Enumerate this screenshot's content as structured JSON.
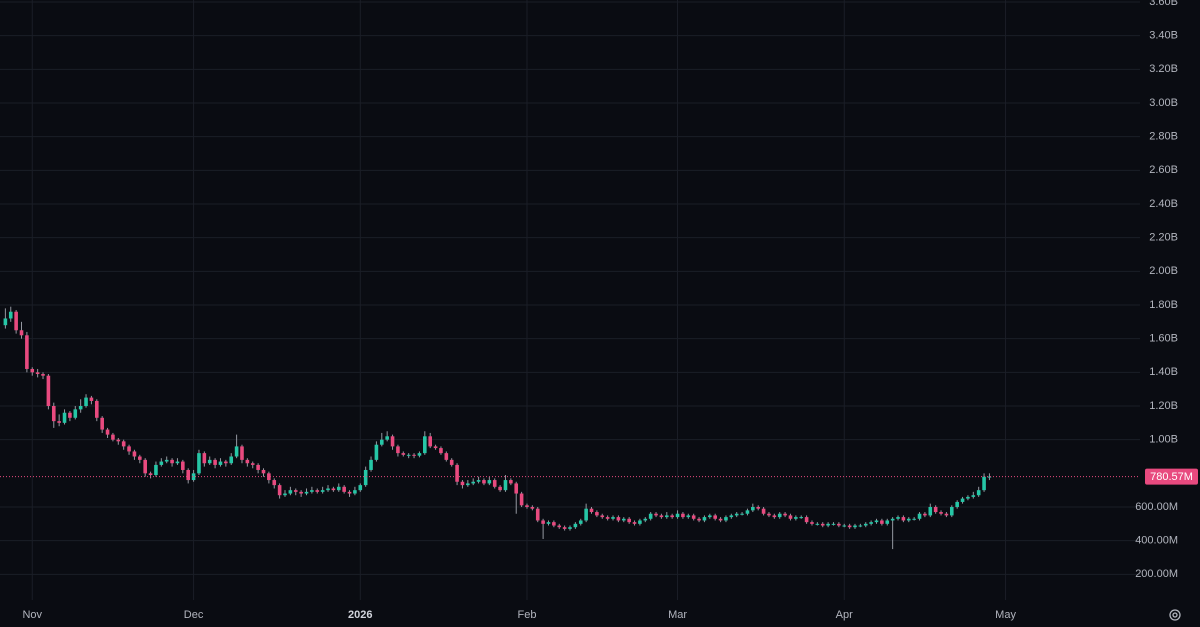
{
  "chart_data": {
    "type": "candlestick",
    "up_color": "#26c6a6",
    "down_color": "#e84a7f",
    "grid": true,
    "xlim": [
      -1,
      211
    ],
    "xticks": [
      {
        "value": 5,
        "label": "Nov"
      },
      {
        "value": 35,
        "label": "Dec"
      },
      {
        "value": 66,
        "label": "2026"
      },
      {
        "value": 97,
        "label": "Feb"
      },
      {
        "value": 125,
        "label": "Mar"
      },
      {
        "value": 156,
        "label": "Apr"
      },
      {
        "value": 186,
        "label": "May"
      }
    ],
    "ylim": [
      0,
      3600
    ],
    "yticks": [
      {
        "value": 200,
        "label": "200.00M"
      },
      {
        "value": 400,
        "label": "400.00M"
      },
      {
        "value": 600,
        "label": "600.00M"
      },
      {
        "value": 1000,
        "label": "1.00B"
      },
      {
        "value": 1200,
        "label": "1.20B"
      },
      {
        "value": 1400,
        "label": "1.40B"
      },
      {
        "value": 1600,
        "label": "1.60B"
      },
      {
        "value": 1800,
        "label": "1.80B"
      },
      {
        "value": 2000,
        "label": "2.00B"
      },
      {
        "value": 2200,
        "label": "2.20B"
      },
      {
        "value": 2400,
        "label": "2.40B"
      },
      {
        "value": 2600,
        "label": "2.60B"
      },
      {
        "value": 2800,
        "label": "2.80B"
      },
      {
        "value": 3000,
        "label": "3.00B"
      },
      {
        "value": 3200,
        "label": "3.20B"
      },
      {
        "value": 3400,
        "label": "3.40B"
      },
      {
        "value": 3600,
        "label": "3.60B"
      }
    ],
    "price_line": {
      "value": 780.57,
      "label": "780.57M"
    },
    "ohlc": [
      [
        1680,
        1780,
        1660,
        1720
      ],
      [
        1720,
        1790,
        1700,
        1760
      ],
      [
        1760,
        1770,
        1630,
        1650
      ],
      [
        1650,
        1700,
        1600,
        1620
      ],
      [
        1620,
        1640,
        1400,
        1420
      ],
      [
        1420,
        1430,
        1380,
        1400
      ],
      [
        1400,
        1420,
        1370,
        1390
      ],
      [
        1390,
        1400,
        1360,
        1380
      ],
      [
        1380,
        1390,
        1180,
        1200
      ],
      [
        1200,
        1220,
        1070,
        1110
      ],
      [
        1110,
        1150,
        1080,
        1100
      ],
      [
        1100,
        1180,
        1090,
        1160
      ],
      [
        1160,
        1170,
        1110,
        1130
      ],
      [
        1130,
        1200,
        1120,
        1180
      ],
      [
        1180,
        1240,
        1160,
        1200
      ],
      [
        1200,
        1270,
        1190,
        1250
      ],
      [
        1250,
        1260,
        1210,
        1230
      ],
      [
        1230,
        1240,
        1110,
        1130
      ],
      [
        1130,
        1140,
        1040,
        1060
      ],
      [
        1060,
        1070,
        1010,
        1030
      ],
      [
        1030,
        1040,
        990,
        1000
      ],
      [
        1000,
        1010,
        970,
        990
      ],
      [
        990,
        1000,
        940,
        960
      ],
      [
        960,
        970,
        910,
        930
      ],
      [
        930,
        940,
        880,
        900
      ],
      [
        900,
        910,
        860,
        880
      ],
      [
        880,
        890,
        780,
        800
      ],
      [
        800,
        810,
        770,
        790
      ],
      [
        790,
        870,
        780,
        850
      ],
      [
        850,
        890,
        840,
        870
      ],
      [
        870,
        900,
        860,
        880
      ],
      [
        880,
        890,
        840,
        860
      ],
      [
        860,
        890,
        850,
        870
      ],
      [
        870,
        880,
        800,
        820
      ],
      [
        820,
        830,
        740,
        760
      ],
      [
        760,
        820,
        750,
        800
      ],
      [
        800,
        940,
        790,
        920
      ],
      [
        920,
        930,
        840,
        860
      ],
      [
        860,
        900,
        850,
        880
      ],
      [
        880,
        890,
        830,
        850
      ],
      [
        850,
        890,
        840,
        870
      ],
      [
        870,
        880,
        840,
        860
      ],
      [
        860,
        920,
        850,
        900
      ],
      [
        900,
        1030,
        890,
        960
      ],
      [
        960,
        970,
        860,
        880
      ],
      [
        880,
        890,
        840,
        860
      ],
      [
        860,
        870,
        830,
        850
      ],
      [
        850,
        860,
        800,
        820
      ],
      [
        820,
        830,
        780,
        800
      ],
      [
        800,
        810,
        740,
        760
      ],
      [
        760,
        770,
        710,
        730
      ],
      [
        730,
        740,
        650,
        670
      ],
      [
        670,
        700,
        660,
        680
      ],
      [
        680,
        720,
        670,
        700
      ],
      [
        700,
        710,
        670,
        690
      ],
      [
        690,
        700,
        660,
        680
      ],
      [
        680,
        710,
        670,
        690
      ],
      [
        690,
        720,
        680,
        700
      ],
      [
        700,
        710,
        680,
        690
      ],
      [
        690,
        720,
        680,
        700
      ],
      [
        700,
        730,
        690,
        710
      ],
      [
        710,
        720,
        690,
        700
      ],
      [
        700,
        740,
        690,
        720
      ],
      [
        720,
        730,
        680,
        690
      ],
      [
        690,
        700,
        660,
        680
      ],
      [
        680,
        720,
        670,
        700
      ],
      [
        700,
        740,
        690,
        730
      ],
      [
        730,
        840,
        720,
        820
      ],
      [
        820,
        900,
        810,
        880
      ],
      [
        880,
        990,
        870,
        970
      ],
      [
        970,
        1040,
        960,
        1000
      ],
      [
        1000,
        1050,
        990,
        1020
      ],
      [
        1020,
        1030,
        940,
        960
      ],
      [
        960,
        970,
        900,
        920
      ],
      [
        920,
        930,
        900,
        910
      ],
      [
        910,
        920,
        890,
        910
      ],
      [
        910,
        920,
        890,
        905
      ],
      [
        905,
        930,
        895,
        920
      ],
      [
        920,
        1050,
        910,
        1020
      ],
      [
        1020,
        1040,
        950,
        960
      ],
      [
        960,
        970,
        940,
        950
      ],
      [
        950,
        960,
        910,
        920
      ],
      [
        920,
        930,
        870,
        880
      ],
      [
        880,
        890,
        840,
        850
      ],
      [
        850,
        860,
        730,
        750
      ],
      [
        750,
        760,
        710,
        730
      ],
      [
        730,
        760,
        720,
        740
      ],
      [
        740,
        770,
        730,
        750
      ],
      [
        750,
        780,
        740,
        760
      ],
      [
        760,
        770,
        730,
        740
      ],
      [
        740,
        780,
        730,
        760
      ],
      [
        760,
        770,
        710,
        720
      ],
      [
        720,
        730,
        690,
        700
      ],
      [
        700,
        790,
        690,
        760
      ],
      [
        760,
        770,
        730,
        740
      ],
      [
        740,
        750,
        560,
        680
      ],
      [
        680,
        690,
        600,
        610
      ],
      [
        610,
        620,
        590,
        600
      ],
      [
        600,
        610,
        580,
        590
      ],
      [
        590,
        600,
        510,
        520
      ],
      [
        520,
        530,
        410,
        500
      ],
      [
        500,
        520,
        490,
        510
      ],
      [
        510,
        520,
        480,
        490
      ],
      [
        490,
        500,
        470,
        480
      ],
      [
        480,
        490,
        460,
        470
      ],
      [
        470,
        490,
        460,
        480
      ],
      [
        480,
        510,
        470,
        500
      ],
      [
        500,
        530,
        490,
        520
      ],
      [
        520,
        620,
        510,
        590
      ],
      [
        590,
        600,
        560,
        570
      ],
      [
        570,
        580,
        540,
        550
      ],
      [
        550,
        560,
        530,
        540
      ],
      [
        540,
        550,
        520,
        530
      ],
      [
        530,
        550,
        520,
        540
      ],
      [
        540,
        550,
        510,
        520
      ],
      [
        520,
        540,
        510,
        530
      ],
      [
        530,
        540,
        500,
        510
      ],
      [
        510,
        520,
        490,
        500
      ],
      [
        500,
        530,
        490,
        520
      ],
      [
        520,
        540,
        510,
        530
      ],
      [
        530,
        570,
        520,
        560
      ],
      [
        560,
        570,
        540,
        550
      ],
      [
        550,
        560,
        530,
        540
      ],
      [
        540,
        570,
        530,
        550
      ],
      [
        550,
        560,
        530,
        540
      ],
      [
        540,
        580,
        530,
        560
      ],
      [
        560,
        570,
        530,
        540
      ],
      [
        540,
        560,
        530,
        550
      ],
      [
        550,
        560,
        520,
        530
      ],
      [
        530,
        540,
        510,
        520
      ],
      [
        520,
        550,
        510,
        540
      ],
      [
        540,
        560,
        530,
        550
      ],
      [
        550,
        560,
        520,
        530
      ],
      [
        530,
        540,
        510,
        520
      ],
      [
        520,
        550,
        510,
        540
      ],
      [
        540,
        560,
        530,
        550
      ],
      [
        550,
        570,
        540,
        560
      ],
      [
        560,
        570,
        550,
        560
      ],
      [
        560,
        590,
        550,
        580
      ],
      [
        580,
        620,
        570,
        600
      ],
      [
        600,
        610,
        580,
        590
      ],
      [
        590,
        600,
        550,
        560
      ],
      [
        560,
        570,
        540,
        550
      ],
      [
        550,
        560,
        530,
        540
      ],
      [
        540,
        570,
        530,
        560
      ],
      [
        560,
        570,
        540,
        550
      ],
      [
        550,
        560,
        520,
        530
      ],
      [
        530,
        550,
        520,
        540
      ],
      [
        540,
        550,
        530,
        540
      ],
      [
        540,
        550,
        500,
        510
      ],
      [
        510,
        520,
        490,
        500
      ],
      [
        500,
        510,
        490,
        500
      ],
      [
        500,
        510,
        480,
        490
      ],
      [
        490,
        510,
        480,
        500
      ],
      [
        500,
        510,
        490,
        500
      ],
      [
        500,
        510,
        480,
        490
      ],
      [
        490,
        500,
        480,
        490
      ],
      [
        490,
        500,
        470,
        480
      ],
      [
        480,
        500,
        470,
        490
      ],
      [
        490,
        500,
        480,
        490
      ],
      [
        490,
        510,
        480,
        500
      ],
      [
        500,
        520,
        490,
        510
      ],
      [
        510,
        530,
        500,
        520
      ],
      [
        520,
        530,
        490,
        500
      ],
      [
        500,
        530,
        490,
        520
      ],
      [
        520,
        540,
        350,
        530
      ],
      [
        530,
        550,
        520,
        540
      ],
      [
        540,
        550,
        510,
        520
      ],
      [
        520,
        540,
        510,
        530
      ],
      [
        530,
        540,
        520,
        530
      ],
      [
        530,
        570,
        520,
        560
      ],
      [
        560,
        570,
        540,
        550
      ],
      [
        550,
        620,
        540,
        600
      ],
      [
        600,
        610,
        560,
        570
      ],
      [
        570,
        580,
        550,
        560
      ],
      [
        560,
        570,
        540,
        550
      ],
      [
        550,
        610,
        540,
        600
      ],
      [
        600,
        640,
        590,
        630
      ],
      [
        630,
        660,
        620,
        650
      ],
      [
        650,
        670,
        640,
        660
      ],
      [
        660,
        690,
        650,
        670
      ],
      [
        670,
        720,
        660,
        700
      ],
      [
        700,
        800,
        690,
        780
      ],
      [
        780,
        800,
        760,
        780.57
      ]
    ]
  }
}
